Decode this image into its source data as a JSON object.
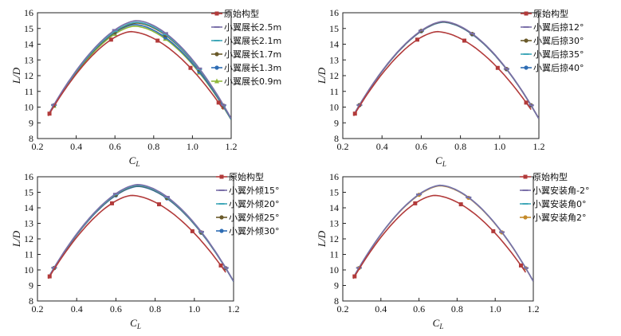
{
  "chart_data": [
    {
      "type": "line",
      "xlabel": "C_L",
      "ylabel": "L/D",
      "xlim": [
        0.2,
        1.2
      ],
      "ylim": [
        8,
        16
      ],
      "xticks": [
        "0.2",
        "0.4",
        "0.6",
        "0.8",
        "1.0",
        "1.2"
      ],
      "yticks": [
        "8",
        "9",
        "10",
        "11",
        "12",
        "13",
        "14",
        "15",
        "16"
      ],
      "series": [
        {
          "name": "原始构型",
          "color": "#b23a3a",
          "marker": "square",
          "peak": [
            0.68,
            14.8
          ],
          "x0": 0.255,
          "x1": 1.16
        },
        {
          "name": "小翼展长2.5m",
          "color": "#7a6fa8",
          "marker": "dash",
          "peak": [
            0.71,
            15.5
          ],
          "x0": 0.265,
          "x1": 1.2
        },
        {
          "name": "小翼展长2.1m",
          "color": "#3fa7b8",
          "marker": "dash",
          "peak": [
            0.71,
            15.4
          ],
          "x0": 0.265,
          "x1": 1.2
        },
        {
          "name": "小翼展长1.7m",
          "color": "#6a5a2a",
          "marker": "circle",
          "peak": [
            0.71,
            15.35
          ],
          "x0": 0.265,
          "x1": 1.2
        },
        {
          "name": "小翼展长1.3m",
          "color": "#2e6db4",
          "marker": "circle",
          "peak": [
            0.7,
            15.25
          ],
          "x0": 0.265,
          "x1": 1.2
        },
        {
          "name": "小翼展长0.9m",
          "color": "#8fb73a",
          "marker": "triangle",
          "peak": [
            0.7,
            15.15
          ],
          "x0": 0.265,
          "x1": 1.2
        }
      ]
    },
    {
      "type": "line",
      "xlabel": "C_L",
      "ylabel": "L/D",
      "xlim": [
        0.2,
        1.2
      ],
      "ylim": [
        8,
        16
      ],
      "xticks": [
        "0.2",
        "0.4",
        "0.6",
        "0.8",
        "1.0",
        "1.2"
      ],
      "yticks": [
        "8",
        "9",
        "10",
        "11",
        "12",
        "13",
        "14",
        "15",
        "16"
      ],
      "series": [
        {
          "name": "原始构型",
          "color": "#b23a3a",
          "marker": "square",
          "peak": [
            0.68,
            14.8
          ],
          "x0": 0.255,
          "x1": 1.16
        },
        {
          "name": "小翼后掠12°",
          "color": "#7a6fa8",
          "marker": "dash",
          "peak": [
            0.71,
            15.45
          ],
          "x0": 0.265,
          "x1": 1.2
        },
        {
          "name": "小翼后掠30°",
          "color": "#6a5a2a",
          "marker": "circle",
          "peak": [
            0.71,
            15.43
          ],
          "x0": 0.265,
          "x1": 1.2
        },
        {
          "name": "小翼后掠35°",
          "color": "#3fa7b8",
          "marker": "dash",
          "peak": [
            0.71,
            15.42
          ],
          "x0": 0.265,
          "x1": 1.2
        },
        {
          "name": "小翼后掠40°",
          "color": "#2e6db4",
          "marker": "circle",
          "peak": [
            0.71,
            15.4
          ],
          "x0": 0.265,
          "x1": 1.2
        }
      ]
    },
    {
      "type": "line",
      "xlabel": "C_L",
      "ylabel": "L/D",
      "xlim": [
        0.2,
        1.2
      ],
      "ylim": [
        8,
        16
      ],
      "xticks": [
        "0.2",
        "0.4",
        "0.6",
        "0.8",
        "1.0",
        "1.2"
      ],
      "yticks": [
        "8",
        "9",
        "10",
        "11",
        "12",
        "13",
        "14",
        "15",
        "16"
      ],
      "series": [
        {
          "name": "原始构型",
          "color": "#b23a3a",
          "marker": "square",
          "peak": [
            0.68,
            14.8
          ],
          "x0": 0.255,
          "x1": 1.16
        },
        {
          "name": "小翼外倾15°",
          "color": "#7a6fa8",
          "marker": "dash",
          "peak": [
            0.71,
            15.5
          ],
          "x0": 0.265,
          "x1": 1.2
        },
        {
          "name": "小翼外倾20°",
          "color": "#3fa7b8",
          "marker": "dash",
          "peak": [
            0.71,
            15.45
          ],
          "x0": 0.265,
          "x1": 1.2
        },
        {
          "name": "小翼外倾25°",
          "color": "#6a5a2a",
          "marker": "circle",
          "peak": [
            0.71,
            15.42
          ],
          "x0": 0.265,
          "x1": 1.2
        },
        {
          "name": "小翼外倾30°",
          "color": "#2e6db4",
          "marker": "circle",
          "peak": [
            0.71,
            15.38
          ],
          "x0": 0.265,
          "x1": 1.2
        }
      ]
    },
    {
      "type": "line",
      "xlabel": "C_L",
      "ylabel": "L/D",
      "xlim": [
        0.2,
        1.2
      ],
      "ylim": [
        8,
        16
      ],
      "xticks": [
        "0.2",
        "0.4",
        "0.6",
        "0.8",
        "1.0",
        "1.2"
      ],
      "yticks": [
        "8",
        "9",
        "10",
        "11",
        "12",
        "13",
        "14",
        "15",
        "16"
      ],
      "series": [
        {
          "name": "原始构型",
          "color": "#b23a3a",
          "marker": "square",
          "peak": [
            0.68,
            14.8
          ],
          "x0": 0.255,
          "x1": 1.16
        },
        {
          "name": "小翼安装角-2°",
          "color": "#7a6fa8",
          "marker": "dash",
          "peak": [
            0.71,
            15.45
          ],
          "x0": 0.265,
          "x1": 1.2
        },
        {
          "name": "小翼安装角0°",
          "color": "#3fa7b8",
          "marker": "dash",
          "peak": [
            0.71,
            15.45
          ],
          "x0": 0.265,
          "x1": 1.2
        },
        {
          "name": "小翼安装角2°",
          "color": "#c48a2a",
          "marker": "circle",
          "peak": [
            0.71,
            15.42
          ],
          "x0": 0.265,
          "x1": 1.2
        }
      ]
    }
  ]
}
